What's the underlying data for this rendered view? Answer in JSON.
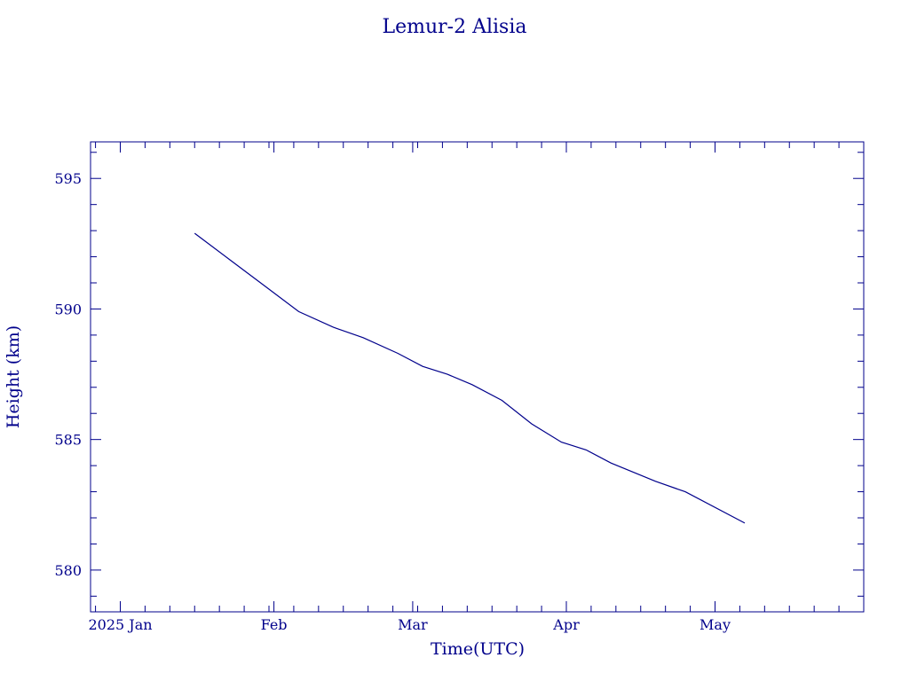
{
  "title": "Lemur-2 Alisia",
  "colors": {
    "axis": "#00008b",
    "line": "#00008b",
    "background": "#ffffff"
  },
  "chart_data": {
    "type": "line",
    "title": "Lemur-2 Alisia",
    "xlabel": "Time(UTC)",
    "ylabel": "Height (km)",
    "xlim": [
      "2024-12-26",
      "2025-05-31"
    ],
    "ylim": [
      578.4,
      596.4
    ],
    "grid": false,
    "x_ticks": [
      {
        "date": "2025-01-01",
        "label": "2025 Jan"
      },
      {
        "date": "2025-02-01",
        "label": "Feb"
      },
      {
        "date": "2025-03-01",
        "label": "Mar"
      },
      {
        "date": "2025-04-01",
        "label": "Apr"
      },
      {
        "date": "2025-05-01",
        "label": "May"
      }
    ],
    "y_ticks": [
      {
        "value": 580,
        "label": "580"
      },
      {
        "value": 585,
        "label": "585"
      },
      {
        "value": 590,
        "label": "590"
      },
      {
        "value": 595,
        "label": "595"
      }
    ],
    "series": [
      {
        "points": [
          [
            "2025-01-16",
            592.9
          ],
          [
            "2025-01-23",
            591.9
          ],
          [
            "2025-01-30",
            590.9
          ],
          [
            "2025-02-06",
            589.9
          ],
          [
            "2025-02-13",
            589.3
          ],
          [
            "2025-02-19",
            588.9
          ],
          [
            "2025-02-26",
            588.3
          ],
          [
            "2025-03-03",
            587.8
          ],
          [
            "2025-03-08",
            587.5
          ],
          [
            "2025-03-13",
            587.1
          ],
          [
            "2025-03-19",
            586.5
          ],
          [
            "2025-03-25",
            585.6
          ],
          [
            "2025-03-31",
            584.9
          ],
          [
            "2025-04-05",
            584.6
          ],
          [
            "2025-04-10",
            584.1
          ],
          [
            "2025-04-19",
            583.4
          ],
          [
            "2025-04-25",
            583.0
          ],
          [
            "2025-05-07",
            581.8
          ]
        ]
      }
    ]
  }
}
